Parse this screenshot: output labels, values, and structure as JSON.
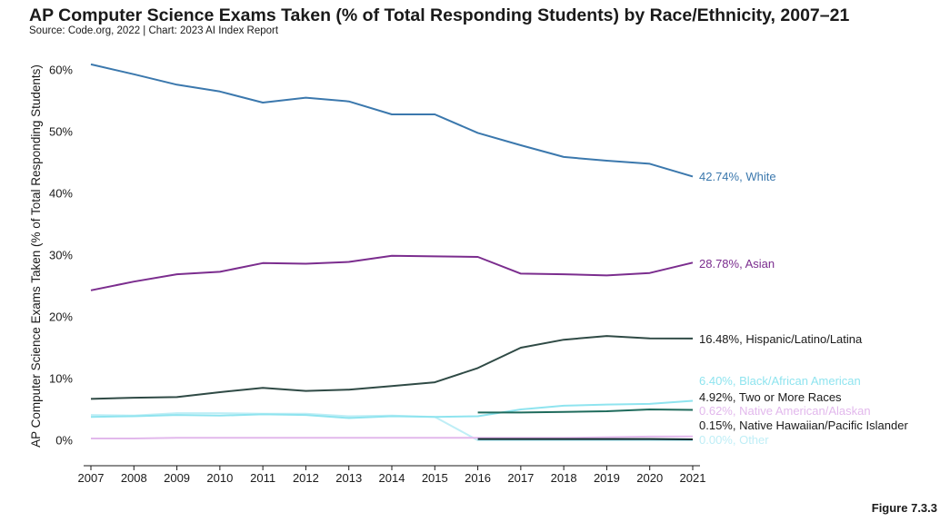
{
  "header": {
    "title": "AP Computer Science Exams Taken (% of Total Responding Students) by Race/Ethnicity, 2007–21",
    "source": "Source: Code.org, 2022 | Chart: 2023 AI Index Report"
  },
  "footer": {
    "figure": "Figure 7.3.3"
  },
  "chart_data": {
    "type": "line",
    "title": "AP Computer Science Exams Taken (% of Total Responding Students) by Race/Ethnicity, 2007–21",
    "xlabel": "",
    "ylabel": "AP Computer Science Exams Taken (% of Total Responding Students)",
    "ylim": [
      0,
      62
    ],
    "y_ticks": [
      0,
      10,
      20,
      30,
      40,
      50,
      60
    ],
    "y_tick_labels": [
      "0%",
      "10%",
      "20%",
      "30%",
      "40%",
      "50%",
      "60%"
    ],
    "grid": false,
    "legend": "end-of-line labels",
    "x": [
      2007,
      2008,
      2009,
      2010,
      2011,
      2012,
      2013,
      2014,
      2015,
      2016,
      2017,
      2018,
      2019,
      2020,
      2021
    ],
    "series": [
      {
        "name": "White",
        "label": "42.74%, White",
        "color": "#3b78ad",
        "values": [
          60.9,
          59.3,
          57.6,
          56.5,
          54.7,
          55.5,
          54.9,
          52.8,
          52.8,
          49.8,
          47.8,
          45.9,
          45.3,
          44.8,
          42.74
        ]
      },
      {
        "name": "Asian",
        "label": "28.78%, Asian",
        "color": "#7b2d8e",
        "values": [
          24.3,
          25.7,
          26.9,
          27.3,
          28.7,
          28.6,
          28.9,
          29.9,
          29.8,
          29.7,
          27.0,
          26.9,
          26.7,
          27.1,
          28.78
        ]
      },
      {
        "name": "Hispanic/Latino/Latina",
        "label": "16.48%, Hispanic/Latino/Latina",
        "color": "#2f4a45",
        "values": [
          6.7,
          6.9,
          7.0,
          7.8,
          8.5,
          8.0,
          8.2,
          8.8,
          9.4,
          11.7,
          15.0,
          16.3,
          16.9,
          16.5,
          16.48
        ]
      },
      {
        "name": "Black/African American",
        "label": "6.40%, Black/African American",
        "color": "#8fe4ef",
        "values": [
          3.8,
          3.9,
          4.1,
          4.0,
          4.2,
          4.1,
          3.6,
          3.9,
          3.8,
          3.9,
          5.0,
          5.6,
          5.8,
          5.9,
          6.4
        ]
      },
      {
        "name": "Two or More Races",
        "label": "4.92%, Two or More Races",
        "color": "#1f6b5c",
        "values": [
          null,
          null,
          null,
          null,
          null,
          null,
          null,
          null,
          null,
          4.5,
          4.5,
          4.6,
          4.7,
          5.0,
          4.92
        ]
      },
      {
        "name": "Native American/Alaskan",
        "label": "0.62%, Native American/Alaskan",
        "color": "#e2b8ec",
        "values": [
          0.3,
          0.3,
          0.4,
          0.4,
          0.4,
          0.4,
          0.4,
          0.4,
          0.4,
          0.4,
          0.4,
          0.4,
          0.5,
          0.6,
          0.62
        ]
      },
      {
        "name": "Native Hawaiian/Pacific Islander",
        "label": "0.15%, Native Hawaiian/Pacific Islander",
        "color": "#0d2a2c",
        "values": [
          null,
          null,
          null,
          null,
          null,
          null,
          null,
          null,
          null,
          0.2,
          0.2,
          0.2,
          0.2,
          0.2,
          0.15
        ]
      },
      {
        "name": "Other",
        "label": "0.00%, Other",
        "color": "#bfeef6",
        "values": [
          4.1,
          4.0,
          4.4,
          4.4,
          4.3,
          4.3,
          3.9,
          4.0,
          3.8,
          0.0,
          0.0,
          0.0,
          0.0,
          0.0,
          0.0
        ]
      }
    ]
  }
}
